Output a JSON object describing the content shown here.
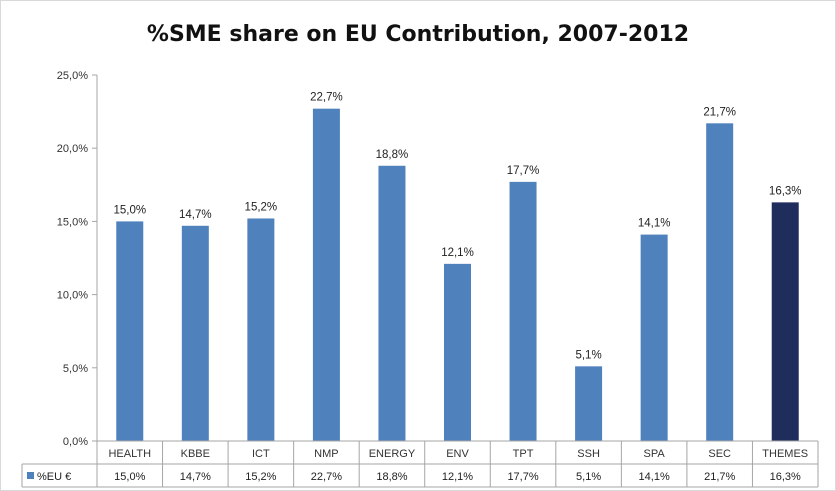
{
  "chart_data": {
    "type": "bar",
    "title": "%SME share on EU Contribution, 2007-2012",
    "categories": [
      "HEALTH",
      "KBBE",
      "ICT",
      "NMP",
      "ENERGY",
      "ENV",
      "TPT",
      "SSH",
      "SPA",
      "SEC",
      "THEMES"
    ],
    "series": [
      {
        "name": "%EU €",
        "values": [
          15.0,
          14.7,
          15.2,
          22.7,
          18.8,
          12.1,
          17.7,
          5.1,
          14.1,
          21.7,
          16.3
        ],
        "labels": [
          "15,0%",
          "14,7%",
          "15,2%",
          "22,7%",
          "18,8%",
          "12,1%",
          "17,7%",
          "5,1%",
          "14,1%",
          "21,7%",
          "16,3%"
        ]
      }
    ],
    "highlight_category": "THEMES",
    "y_ticks": [
      "0,0%",
      "5,0%",
      "10,0%",
      "15,0%",
      "20,0%",
      "25,0%"
    ],
    "ylim": [
      0,
      25
    ],
    "grid": false,
    "legend": "data-table",
    "colors": {
      "bar": "#4f81bd",
      "highlight": "#1f2d5c",
      "axis": "#a6a6a6"
    }
  }
}
